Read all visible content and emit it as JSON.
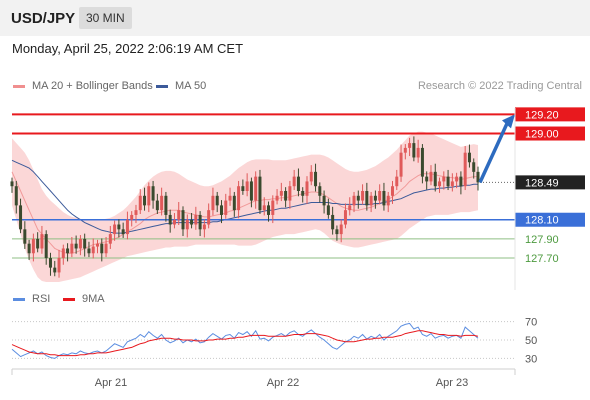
{
  "header": {
    "pair": "USD/JPY",
    "timeframe": "30 MIN"
  },
  "datetime": "Monday, April 25, 2022 2:06:19 AM CET",
  "credit": "Research © 2022 Trading Central",
  "colors": {
    "resistance": "#e8191e",
    "support": "#3a6fd8",
    "target": "#4d9a3f",
    "candle_up": "#e05a5a",
    "candle_down": "#3a4a2e",
    "band_fill": "#fbd7d7",
    "ma50": "#3c5a9a",
    "rsi": "#5b8de0",
    "rsi_ma": "#e8191e",
    "arrow": "#2d6bbf",
    "price_box": "#222222"
  },
  "chart_data": [
    {
      "type": "candlestick",
      "legend": [
        {
          "label": "MA 20 + Bollinger Bands",
          "color": "#f08f8f"
        },
        {
          "label": "MA 50",
          "color": "#3c5a9a"
        }
      ],
      "xticks": [
        "Apr 21",
        "Apr 22",
        "Apr 23"
      ],
      "ylim": [
        127.45,
        129.35
      ],
      "levels": [
        {
          "value": 129.2,
          "label": "129.20",
          "kind": "resistance"
        },
        {
          "value": 129.0,
          "label": "129.00",
          "kind": "resistance"
        },
        {
          "value": 128.49,
          "label": "128.49",
          "kind": "current"
        },
        {
          "value": 128.1,
          "label": "128.10",
          "kind": "support"
        },
        {
          "value": 127.9,
          "label": "127.90",
          "kind": "target"
        },
        {
          "value": 127.7,
          "label": "127.70",
          "kind": "target"
        }
      ],
      "close": [
        128.45,
        128.25,
        128.0,
        127.85,
        127.75,
        127.9,
        127.8,
        127.95,
        127.7,
        127.6,
        127.55,
        127.7,
        127.8,
        127.75,
        127.85,
        127.8,
        127.9,
        127.8,
        127.75,
        127.82,
        127.85,
        127.75,
        127.85,
        127.95,
        128.05,
        128.0,
        127.95,
        128.1,
        128.15,
        128.2,
        128.35,
        128.25,
        128.45,
        128.3,
        128.2,
        128.35,
        128.15,
        128.05,
        128.1,
        128.2,
        128.0,
        128.1,
        128.05,
        128.15,
        128.0,
        128.05,
        128.2,
        128.35,
        128.25,
        128.15,
        128.3,
        128.35,
        128.2,
        128.45,
        128.4,
        128.5,
        128.3,
        128.55,
        128.2,
        128.25,
        128.15,
        128.3,
        128.35,
        128.4,
        128.3,
        128.45,
        128.55,
        128.4,
        128.35,
        128.5,
        128.6,
        128.45,
        128.35,
        128.25,
        128.15,
        128.0,
        127.95,
        128.05,
        128.2,
        128.25,
        128.35,
        128.3,
        128.4,
        128.25,
        128.35,
        128.3,
        128.4,
        128.25,
        128.35,
        128.45,
        128.55,
        128.8,
        128.85,
        128.9,
        128.75,
        128.85,
        128.55,
        128.5,
        128.6,
        128.45,
        128.5,
        128.55,
        128.45,
        128.5,
        128.55,
        128.45,
        128.8,
        128.7,
        128.6,
        128.49
      ],
      "ma20": [
        128.6,
        128.5,
        128.4,
        128.3,
        128.2,
        128.1,
        128.0,
        127.95,
        127.9,
        127.85,
        127.8,
        127.78,
        127.76,
        127.75,
        127.75,
        127.76,
        127.78,
        127.8,
        127.82,
        127.84,
        127.85,
        127.86,
        127.87,
        127.88,
        127.9,
        127.92,
        127.95,
        127.98,
        128.0,
        128.03,
        128.06,
        128.1,
        128.13,
        128.15,
        128.17,
        128.18,
        128.19,
        128.2,
        128.2,
        128.2,
        128.18,
        128.17,
        128.16,
        128.15,
        128.14,
        128.13,
        128.13,
        128.14,
        128.15,
        128.16,
        128.17,
        128.19,
        128.2,
        128.22,
        128.24,
        128.26,
        128.28,
        128.3,
        128.3,
        128.31,
        128.31,
        128.32,
        128.32,
        128.33,
        128.33,
        128.34,
        128.35,
        128.36,
        128.37,
        128.38,
        128.39,
        128.39,
        128.38,
        128.36,
        128.33,
        128.3,
        128.27,
        128.24,
        128.22,
        128.21,
        128.2,
        128.2,
        128.21,
        128.22,
        128.23,
        128.25,
        128.27,
        128.29,
        128.31,
        128.34,
        128.37,
        128.41,
        128.45,
        128.5,
        128.53,
        128.56,
        128.58,
        128.58,
        128.58,
        128.57,
        128.56,
        128.55,
        128.54,
        128.54,
        128.53,
        128.52,
        128.53,
        128.54,
        128.55,
        128.55
      ],
      "bb_upper": [
        128.95,
        128.9,
        128.85,
        128.8,
        128.72,
        128.62,
        128.52,
        128.42,
        128.35,
        128.3,
        128.26,
        128.22,
        128.18,
        128.15,
        128.13,
        128.12,
        128.11,
        128.1,
        128.1,
        128.1,
        128.1,
        128.1,
        128.11,
        128.12,
        128.14,
        128.17,
        128.2,
        128.24,
        128.29,
        128.34,
        128.4,
        128.46,
        128.51,
        128.55,
        128.58,
        128.6,
        128.61,
        128.61,
        128.6,
        128.58,
        128.55,
        128.52,
        128.5,
        128.48,
        128.46,
        128.45,
        128.45,
        128.46,
        128.48,
        128.5,
        128.53,
        128.56,
        128.6,
        128.64,
        128.67,
        128.7,
        128.72,
        128.73,
        128.73,
        128.73,
        128.73,
        128.72,
        128.72,
        128.72,
        128.72,
        128.73,
        128.74,
        128.75,
        128.76,
        128.77,
        128.78,
        128.78,
        128.78,
        128.77,
        128.75,
        128.72,
        128.69,
        128.66,
        128.63,
        128.61,
        128.6,
        128.6,
        128.61,
        128.62,
        128.64,
        128.66,
        128.69,
        128.72,
        128.75,
        128.79,
        128.83,
        128.88,
        128.93,
        128.98,
        129.0,
        129.02,
        129.02,
        129.01,
        129.0,
        128.98,
        128.96,
        128.94,
        128.92,
        128.9,
        128.88,
        128.86,
        128.87,
        128.88,
        128.89,
        128.88
      ],
      "bb_lower": [
        128.25,
        128.1,
        127.95,
        127.8,
        127.68,
        127.58,
        127.5,
        127.46,
        127.45,
        127.45,
        127.45,
        127.45,
        127.46,
        127.47,
        127.48,
        127.49,
        127.5,
        127.52,
        127.54,
        127.56,
        127.58,
        127.6,
        127.62,
        127.64,
        127.66,
        127.68,
        127.7,
        127.72,
        127.73,
        127.74,
        127.75,
        127.76,
        127.77,
        127.78,
        127.79,
        127.8,
        127.81,
        127.81,
        127.82,
        127.82,
        127.82,
        127.82,
        127.83,
        127.84,
        127.84,
        127.84,
        127.84,
        127.84,
        127.84,
        127.84,
        127.84,
        127.84,
        127.84,
        127.83,
        127.83,
        127.83,
        127.83,
        127.84,
        127.86,
        127.88,
        127.9,
        127.92,
        127.93,
        127.94,
        127.95,
        127.95,
        127.95,
        127.96,
        127.97,
        127.98,
        127.99,
        128.0,
        127.99,
        127.96,
        127.92,
        127.88,
        127.86,
        127.84,
        127.83,
        127.82,
        127.81,
        127.81,
        127.82,
        127.83,
        127.84,
        127.85,
        127.86,
        127.87,
        127.88,
        127.89,
        127.9,
        127.93,
        127.97,
        128.01,
        128.04,
        128.07,
        128.1,
        128.13,
        128.14,
        128.15,
        128.15,
        128.15,
        128.15,
        128.16,
        128.17,
        128.18,
        128.18,
        128.18,
        128.19,
        128.2
      ],
      "ma50": [
        128.72,
        128.7,
        128.68,
        128.66,
        128.64,
        128.6,
        128.55,
        128.5,
        128.45,
        128.4,
        128.35,
        128.3,
        128.25,
        128.2,
        128.16,
        128.13,
        128.1,
        128.07,
        128.05,
        128.03,
        128.01,
        127.99,
        127.98,
        127.97,
        127.96,
        127.96,
        127.96,
        127.97,
        127.98,
        127.99,
        128.0,
        128.01,
        128.02,
        128.03,
        128.04,
        128.05,
        128.06,
        128.06,
        128.07,
        128.07,
        128.07,
        128.07,
        128.07,
        128.07,
        128.07,
        128.07,
        128.07,
        128.08,
        128.08,
        128.09,
        128.1,
        128.11,
        128.12,
        128.13,
        128.14,
        128.15,
        128.16,
        128.17,
        128.18,
        128.19,
        128.2,
        128.2,
        128.21,
        128.22,
        128.22,
        128.23,
        128.24,
        128.25,
        128.26,
        128.27,
        128.28,
        128.28,
        128.28,
        128.28,
        128.28,
        128.27,
        128.27,
        128.26,
        128.26,
        128.26,
        128.26,
        128.26,
        128.26,
        128.26,
        128.26,
        128.27,
        128.27,
        128.28,
        128.29,
        128.3,
        128.31,
        128.32,
        128.34,
        128.36,
        128.38,
        128.39,
        128.4,
        128.41,
        128.42,
        128.42,
        128.43,
        128.43,
        128.44,
        128.44,
        128.45,
        128.45,
        128.46,
        128.46,
        128.47,
        128.47
      ]
    },
    {
      "type": "line",
      "legend": [
        {
          "label": "RSI",
          "color": "#5b8de0"
        },
        {
          "label": "9MA",
          "color": "#e8191e"
        }
      ],
      "ylim": [
        25,
        75
      ],
      "yticks": [
        "70",
        "50",
        "30"
      ],
      "series": [
        {
          "name": "RSI",
          "values": [
            40,
            36,
            32,
            34,
            36,
            38,
            35,
            37,
            33,
            31,
            30,
            33,
            35,
            34,
            36,
            35,
            38,
            36,
            35,
            37,
            38,
            36,
            38,
            42,
            46,
            44,
            42,
            48,
            50,
            52,
            56,
            53,
            59,
            55,
            52,
            56,
            50,
            47,
            49,
            52,
            47,
            50,
            48,
            51,
            47,
            48,
            53,
            57,
            54,
            51,
            55,
            56,
            52,
            58,
            56,
            59,
            54,
            60,
            51,
            52,
            49,
            53,
            55,
            57,
            54,
            58,
            60,
            56,
            54,
            58,
            61,
            57,
            53,
            50,
            46,
            42,
            40,
            44,
            48,
            50,
            54,
            52,
            56,
            51,
            54,
            52,
            56,
            50,
            54,
            57,
            60,
            65,
            67,
            68,
            62,
            64,
            56,
            54,
            57,
            52,
            54,
            55,
            52,
            54,
            55,
            52,
            64,
            60,
            56,
            52
          ]
        },
        {
          "name": "9MA",
          "values": [
            45,
            43,
            41,
            39,
            37,
            36,
            35,
            35,
            35,
            34,
            34,
            33,
            33,
            33,
            33,
            33,
            34,
            34,
            35,
            35,
            36,
            36,
            36,
            37,
            38,
            39,
            40,
            41,
            42,
            44,
            46,
            47,
            49,
            50,
            51,
            52,
            52,
            52,
            51,
            51,
            50,
            50,
            50,
            49,
            49,
            49,
            50,
            50,
            51,
            51,
            51,
            52,
            52,
            53,
            53,
            54,
            55,
            55,
            55,
            55,
            54,
            54,
            54,
            54,
            54,
            55,
            56,
            56,
            56,
            57,
            57,
            57,
            56,
            55,
            54,
            52,
            50,
            49,
            48,
            48,
            48,
            49,
            50,
            51,
            51,
            52,
            52,
            53,
            53,
            53,
            54,
            55,
            57,
            58,
            59,
            60,
            60,
            59,
            58,
            57,
            56,
            56,
            55,
            55,
            55,
            54,
            55,
            55,
            55,
            54
          ]
        }
      ]
    }
  ]
}
